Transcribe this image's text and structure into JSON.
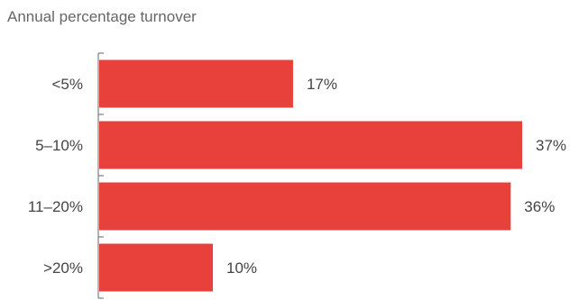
{
  "chart_data": {
    "type": "bar",
    "orientation": "horizontal",
    "title": "Annual percentage turnover",
    "categories": [
      "<5%",
      "5–10%",
      "11–20%",
      ">20%"
    ],
    "values": [
      17,
      37,
      36,
      10
    ],
    "value_labels": [
      "17%",
      "37%",
      "36%",
      "10%"
    ],
    "xlim": [
      0,
      37
    ],
    "grid": false,
    "legend": "none",
    "bar_color": "#e8403a",
    "axis_color": "#666666",
    "text_color": "#444444"
  }
}
